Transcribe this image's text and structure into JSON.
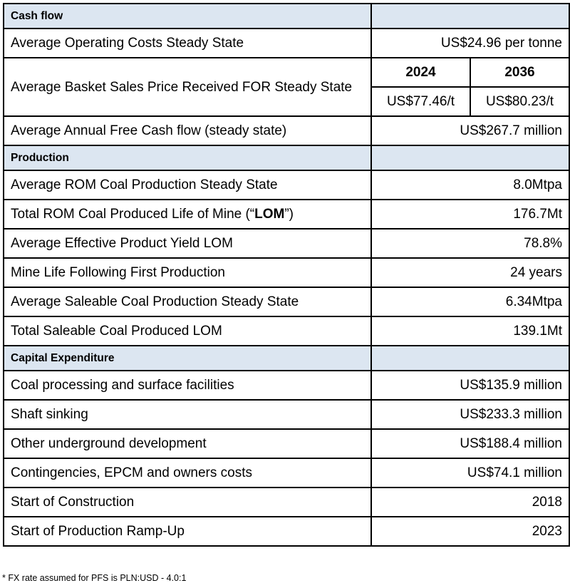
{
  "sections": [
    {
      "title": "Cash flow",
      "operating_costs": {
        "label": "Average Operating Costs Steady State",
        "value": "US$24.96 per tonne"
      },
      "basket_price": {
        "label": "Average Basket Sales Price Received FOR Steady State",
        "years": [
          "2024",
          "2036"
        ],
        "values": [
          "US$77.46/t",
          "US$80.23/t"
        ]
      },
      "free_cash_flow": {
        "label": "Average Annual Free Cash flow (steady state)",
        "value": "US$267.7 million"
      }
    },
    {
      "title": "Production",
      "rows": [
        {
          "label": "Average ROM Coal Production Steady State",
          "value": "8.0Mtpa"
        },
        {
          "label_pre": "Total ROM Coal Produced Life of Mine (“",
          "label_bold": "LOM",
          "label_post": "”)",
          "value": "176.7Mt"
        },
        {
          "label": "Average Effective Product Yield LOM",
          "value": "78.8%"
        },
        {
          "label": "Mine Life Following First Production",
          "value": "24 years"
        },
        {
          "label": "Average Saleable Coal Production Steady State",
          "value": "6.34Mtpa"
        },
        {
          "label": "Total Saleable Coal Produced LOM",
          "value": "139.1Mt"
        }
      ]
    },
    {
      "title": "Capital Expenditure",
      "rows": [
        {
          "label": "Coal processing and surface facilities",
          "value": "US$135.9 million"
        },
        {
          "label": "Shaft sinking",
          "value": "US$233.3 million"
        },
        {
          "label": "Other underground development",
          "value": "US$188.4 million"
        },
        {
          "label": "Contingencies, EPCM and owners costs",
          "value": "US$74.1 million"
        },
        {
          "label": "Start of Construction",
          "value": "2018"
        },
        {
          "label": "Start of Production Ramp-Up",
          "value": "2023"
        }
      ]
    }
  ],
  "footnote": "* FX rate assumed for PFS is PLN:USD - 4.0:1"
}
